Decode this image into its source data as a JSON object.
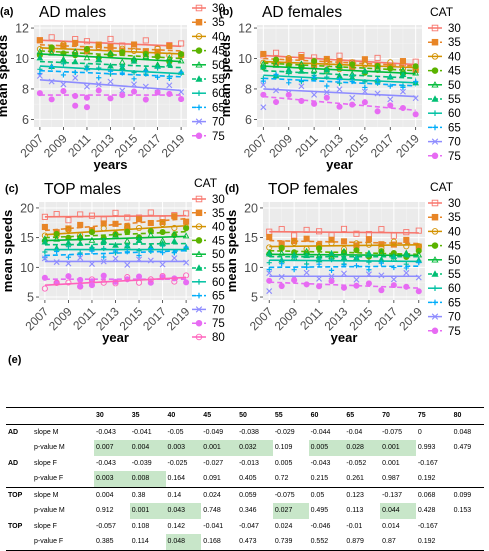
{
  "section_label": "(e)",
  "colors": [
    "#f8766d",
    "#e88526",
    "#d39200",
    "#5bb300",
    "#00ba38",
    "#00bf74",
    "#00c1a3",
    "#00adfa",
    "#8e8cff",
    "#e76bf3",
    "#ff62bc"
  ],
  "years": [
    2007,
    2008,
    2009,
    2010,
    2011,
    2012,
    2013,
    2014,
    2015,
    2016,
    2017,
    2018,
    2019
  ],
  "chart_data": [
    {
      "type": "scatter",
      "panel_letter": "(a)",
      "title": "AD males",
      "xlabel": "years",
      "ylabel": "mean speeds",
      "xticks": [
        2007,
        2009,
        2011,
        2013,
        2015,
        2017,
        2019
      ],
      "yticks": [
        6,
        8,
        10,
        12
      ],
      "ylim": [
        5.5,
        12.2
      ],
      "xlim": [
        2006.5,
        2019.5
      ],
      "legend_title": "",
      "legend_labels": [
        "30",
        "35",
        "40",
        "45",
        "50",
        "55",
        "60",
        "65",
        "70",
        "75"
      ],
      "fit_start": [
        11.2,
        10.9,
        10.7,
        10.5,
        10.3,
        9.8,
        9.5,
        9.2,
        8.6,
        7.6
      ],
      "fit_end": [
        10.8,
        10.5,
        10.3,
        10.0,
        9.8,
        9.4,
        9.0,
        8.8,
        7.9,
        7.6
      ],
      "scatter": 0.3,
      "outliers": [
        {
          "series": 9,
          "x": 2010,
          "y": 6.9
        },
        {
          "series": 9,
          "x": 2011,
          "y": 6.8
        }
      ]
    },
    {
      "type": "scatter",
      "panel_letter": "(b)",
      "title": "AD females",
      "xlabel": "year",
      "ylabel": "mean speeds",
      "xticks": [
        2007,
        2009,
        2011,
        2013,
        2015,
        2017,
        2019
      ],
      "yticks": [
        6,
        8,
        10,
        12
      ],
      "ylim": [
        5.5,
        12.2
      ],
      "xlim": [
        2006.5,
        2019.5
      ],
      "legend_title": "CAT",
      "legend_labels": [
        "30",
        "35",
        "40",
        "45",
        "50",
        "55",
        "60",
        "65",
        "70",
        "75"
      ],
      "fit_start": [
        10.2,
        10.0,
        9.8,
        9.7,
        9.5,
        9.2,
        8.9,
        8.7,
        8.0,
        7.5
      ],
      "fit_end": [
        9.6,
        9.5,
        9.4,
        9.2,
        9.0,
        8.7,
        8.4,
        8.2,
        7.5,
        6.6
      ],
      "scatter": 0.3,
      "outliers": [
        {
          "series": 8,
          "x": 2007,
          "y": 6.8
        }
      ]
    },
    {
      "type": "scatter",
      "panel_letter": "(c)",
      "title": "TOP males",
      "xlabel": "year",
      "ylabel": "mean speeds",
      "xticks": [
        2007,
        2009,
        2011,
        2013,
        2015,
        2017,
        2019
      ],
      "yticks": [
        5,
        10,
        15,
        20
      ],
      "ylim": [
        4.5,
        21
      ],
      "xlim": [
        2006.5,
        2019.5
      ],
      "legend_title": "CAT",
      "legend_labels": [
        "30",
        "35",
        "40",
        "45",
        "50",
        "55",
        "60",
        "65",
        "70",
        "75",
        "80"
      ],
      "fit_start": [
        18.5,
        16.2,
        15.5,
        15.0,
        14.5,
        13.8,
        13.0,
        12.0,
        11.0,
        8.0,
        7.0
      ],
      "fit_end": [
        18.7,
        18.2,
        17.0,
        16.0,
        15.2,
        14.0,
        13.0,
        12.8,
        11.0,
        8.0,
        8.3
      ],
      "scatter": 0.6,
      "outliers": [
        {
          "series": 9,
          "x": 2010,
          "y": 6.8
        },
        {
          "series": 9,
          "x": 2011,
          "y": 7.0
        }
      ]
    },
    {
      "type": "scatter",
      "panel_letter": "(d)",
      "title": "TOP females",
      "xlabel": "year",
      "ylabel": "mean speeds",
      "xticks": [
        2007,
        2009,
        2011,
        2013,
        2015,
        2017,
        2019
      ],
      "yticks": [
        5,
        10,
        15,
        20
      ],
      "ylim": [
        4.5,
        21
      ],
      "xlim": [
        2006.5,
        2019.5
      ],
      "legend_title": "CAT",
      "legend_labels": [
        "30",
        "35",
        "40",
        "45",
        "50",
        "55",
        "60",
        "65",
        "70",
        "75"
      ],
      "fit_start": [
        16.0,
        14.5,
        13.5,
        12.8,
        12.2,
        11.8,
        11.2,
        10.0,
        8.5,
        7.5
      ],
      "fit_end": [
        15.8,
        14.0,
        13.8,
        12.2,
        12.0,
        11.8,
        11.0,
        10.2,
        8.5,
        6.5
      ],
      "scatter": 0.6,
      "outliers": [
        {
          "series": 8,
          "x": 2007,
          "y": 6.0
        }
      ]
    },
    {
      "type": "table",
      "columns": [
        "",
        "",
        "30",
        "35",
        "40",
        "45",
        "50",
        "55",
        "60",
        "65",
        "70",
        "75",
        "80"
      ],
      "rows": [
        {
          "group": "AD",
          "metric": "slope M",
          "values": [
            "-0.043",
            "-0.041",
            "-0.05",
            "-0.049",
            "-0.038",
            "-0.029",
            "-0.044",
            "-0.04",
            "-0.075",
            "0",
            "0.048"
          ],
          "sig": []
        },
        {
          "group": "",
          "metric": "p-value M",
          "values": [
            "0.007",
            "0.004",
            "0.003",
            "0.001",
            "0.032",
            "0.109",
            "0.005",
            "0.028",
            "0.001",
            "0.993",
            "0.479"
          ],
          "sig": [
            0,
            1,
            2,
            3,
            4,
            6,
            7,
            8
          ]
        },
        {
          "group": "AD",
          "metric": "slope F",
          "values": [
            "-0.043",
            "-0.039",
            "-0.025",
            "-0.027",
            "-0.013",
            "0.005",
            "-0.043",
            "-0.052",
            "0.001",
            "-0.167",
            ""
          ],
          "sig": []
        },
        {
          "group": "",
          "metric": "p-value F",
          "values": [
            "0.003",
            "0.008",
            "0.164",
            "0.091",
            "0.405",
            "0.72",
            "0.215",
            "0.261",
            "0.987",
            "0.192",
            ""
          ],
          "sig": [
            0,
            1
          ]
        },
        {
          "group": "TOP",
          "metric": "slope M",
          "values": [
            "0.004",
            "0.38",
            "0.14",
            "0.024",
            "0.059",
            "-0.075",
            "0.05",
            "0.123",
            "-0.137",
            "0.068",
            "0.099"
          ],
          "sig": []
        },
        {
          "group": "",
          "metric": "p-value M",
          "values": [
            "0.912",
            "0.001",
            "0.043",
            "0.748",
            "0.346",
            "0.027",
            "0.495",
            "0.113",
            "0.044",
            "0.428",
            "0.153"
          ],
          "sig": [
            1,
            2,
            5,
            8
          ]
        },
        {
          "group": "TOP",
          "metric": "slope F",
          "values": [
            "-0.057",
            "0.108",
            "0.142",
            "-0.041",
            "-0.047",
            "0.024",
            "-0.046",
            "-0.01",
            "0.014",
            "-0.167",
            ""
          ],
          "sig": []
        },
        {
          "group": "",
          "metric": "p-value F",
          "values": [
            "0.385",
            "0.114",
            "0.048",
            "0.168",
            "0.473",
            "0.739",
            "0.552",
            "0.879",
            "0.87",
            "0.192",
            ""
          ],
          "sig": [
            2
          ]
        }
      ]
    }
  ]
}
